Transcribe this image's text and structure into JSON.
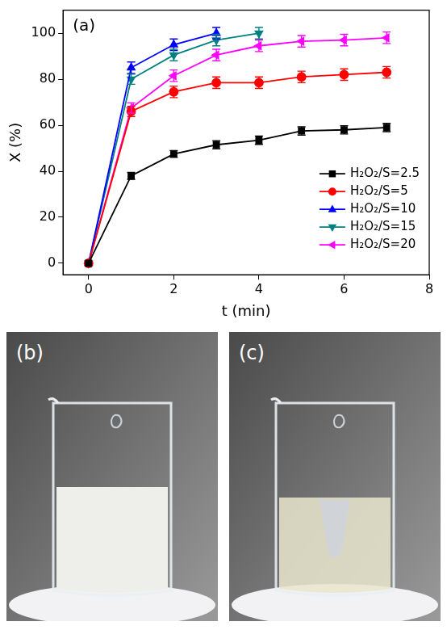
{
  "chart_data": {
    "type": "line",
    "x_label": "t (min)",
    "y_label": "X (%)",
    "annotations": [
      "(a)"
    ],
    "x": [
      0,
      1,
      2,
      3,
      4,
      5,
      6,
      7
    ],
    "xlim": [
      -0.6,
      8
    ],
    "xticks": [
      0,
      2,
      4,
      6,
      8
    ],
    "ylim": [
      -5,
      110
    ],
    "yticks": [
      0,
      20,
      40,
      60,
      80,
      100
    ],
    "grid": false,
    "legend": "lower right",
    "series": [
      {
        "name": "H₂O₂/S=2.5",
        "color": "#000000",
        "marker": "square",
        "line_style": "solid",
        "values": [
          0,
          38,
          47.5,
          51.5,
          53.5,
          57.5,
          58,
          59
        ],
        "errors": [
          0,
          1.5,
          1.5,
          1.8,
          1.8,
          1.8,
          1.8,
          1.8
        ]
      },
      {
        "name": "H₂O₂/S=5",
        "color": "#ff0000",
        "marker": "circle",
        "line_style": "solid",
        "values": [
          0,
          66,
          74.5,
          78.5,
          78.5,
          81,
          82,
          83
        ],
        "errors": [
          0,
          2.2,
          2.5,
          2.5,
          2.5,
          2.5,
          2.5,
          2.5
        ]
      },
      {
        "name": "H₂O₂/S=10",
        "color": "#0000ff",
        "marker": "triangle",
        "line_style": "solid",
        "values": [
          0,
          85,
          95,
          100,
          null,
          null,
          null,
          null
        ],
        "errors": [
          0,
          2.5,
          2.5,
          2.5,
          null,
          null,
          null,
          null
        ]
      },
      {
        "name": "H₂O₂/S=15",
        "color": "#008080",
        "marker": "triangle_down",
        "line_style": "solid",
        "values": [
          0,
          80,
          90.5,
          97,
          100,
          null,
          null,
          null
        ],
        "errors": [
          0,
          2.2,
          2.5,
          2.5,
          2.5,
          null,
          null,
          null
        ]
      },
      {
        "name": "H₂O₂/S=20",
        "color": "#ff00ff",
        "marker": "triangle_left",
        "line_style": "solid",
        "values": [
          0,
          67.5,
          81.5,
          90.5,
          94.5,
          96.5,
          97,
          98
        ],
        "errors": [
          0,
          2.2,
          2.5,
          2.5,
          2.5,
          2.5,
          2.5,
          2.5
        ]
      }
    ]
  },
  "panels": [
    {
      "label": "(b)"
    },
    {
      "label": "(c)"
    }
  ]
}
